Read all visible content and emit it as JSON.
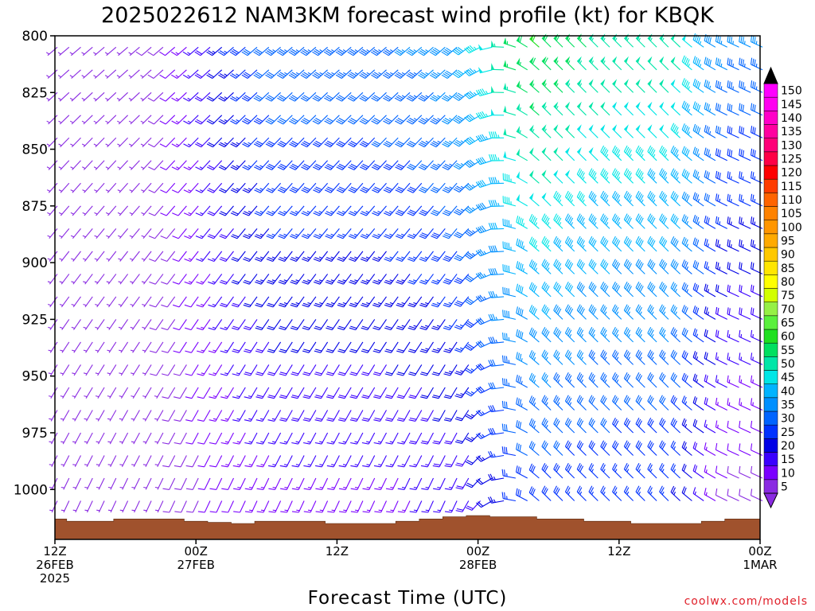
{
  "chart_data": {
    "type": "wind-barb-profile",
    "title": "2025022612 NAM3KM forecast wind profile (kt) for KBQK",
    "xlabel": "Forecast Time (UTC)",
    "ylabel": "",
    "y_axis": {
      "reversed": true,
      "range": [
        800,
        1022
      ],
      "ticks": [
        800,
        825,
        850,
        875,
        900,
        925,
        950,
        975,
        1000
      ]
    },
    "x_axis": {
      "range_hours": [
        0,
        60
      ],
      "ticks": [
        {
          "hour": 0,
          "line1": "12Z",
          "line2": "26FEB",
          "line3": "2025"
        },
        {
          "hour": 12,
          "line1": "00Z",
          "line2": "27FEB",
          "line3": ""
        },
        {
          "hour": 24,
          "line1": "12Z",
          "line2": "",
          "line3": ""
        },
        {
          "hour": 36,
          "line1": "00Z",
          "line2": "28FEB",
          "line3": ""
        },
        {
          "hour": 48,
          "line1": "12Z",
          "line2": "",
          "line3": ""
        },
        {
          "hour": 60,
          "line1": "00Z",
          "line2": "1MAR",
          "line3": ""
        }
      ]
    },
    "colorbar": {
      "levels": [
        5,
        10,
        15,
        20,
        25,
        30,
        35,
        40,
        45,
        50,
        55,
        60,
        65,
        70,
        75,
        80,
        85,
        90,
        95,
        100,
        105,
        110,
        115,
        120,
        125,
        130,
        135,
        140,
        145,
        150
      ],
      "colors": [
        "#8a2be2",
        "#7a00ff",
        "#3a00ff",
        "#0000e6",
        "#0032ff",
        "#0064ff",
        "#0090ff",
        "#00b4ff",
        "#00e6e6",
        "#00e6a8",
        "#00e060",
        "#20e020",
        "#5af03c",
        "#96f046",
        "#d2ff00",
        "#ffff00",
        "#ffe600",
        "#ffc800",
        "#ffaa00",
        "#ff9600",
        "#ff8200",
        "#ff6400",
        "#ff3c00",
        "#ff0000",
        "#ff0046",
        "#ff0078",
        "#ff00a0",
        "#ff00c8",
        "#ff00f0",
        "#ff00ff"
      ]
    },
    "surface_pressure": {
      "hours": [
        0,
        2,
        4,
        6,
        8,
        10,
        12,
        14,
        16,
        18,
        20,
        22,
        24,
        26,
        28,
        30,
        32,
        34,
        36,
        38,
        40,
        42,
        44,
        46,
        48,
        50,
        52,
        54,
        56,
        58,
        60
      ],
      "values": [
        1013,
        1014,
        1014,
        1013,
        1013,
        1013,
        1014,
        1014.5,
        1015,
        1014,
        1014,
        1014,
        1015,
        1015,
        1015,
        1014,
        1013,
        1012,
        1011.5,
        1012,
        1012,
        1013,
        1013,
        1014,
        1014,
        1015,
        1015,
        1015,
        1014,
        1013,
        1013
      ]
    },
    "notes": "wind barbs: direction in degrees (meteorological), speed in kt"
  },
  "credit": "coolwx.com/models"
}
